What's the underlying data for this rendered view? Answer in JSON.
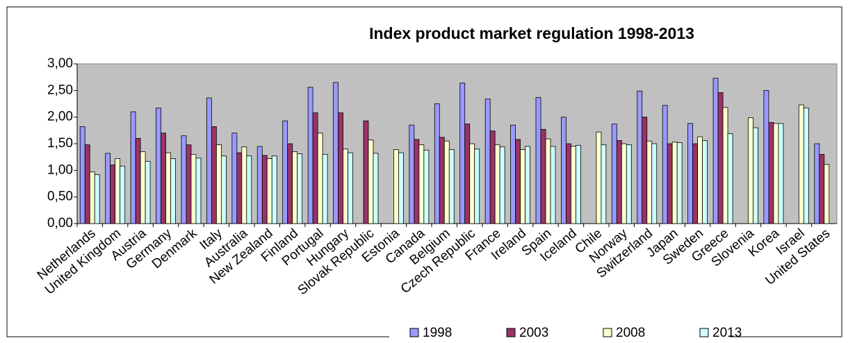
{
  "chart_data": {
    "type": "bar",
    "title": "Index product market regulation 1998-2013",
    "categories": [
      "Netherlands",
      "United Kingdom",
      "Austria",
      "Germany",
      "Denmark",
      "Italy",
      "Australia",
      "New Zealand",
      "Finland",
      "Portugal",
      "Hungary",
      "Slovak Republic",
      "Estonia",
      "Canada",
      "Belgium",
      "Czech Republic",
      "France",
      "Ireland",
      "Spain",
      "Iceland",
      "Chile",
      "Norway",
      "Switzerland",
      "Japan",
      "Sweden",
      "Greece",
      "Slovenia",
      "Korea",
      "Israel",
      "United States"
    ],
    "series": [
      {
        "name": "1998",
        "color": "#9999ff",
        "values": [
          1.82,
          1.32,
          2.1,
          2.17,
          1.65,
          2.36,
          1.7,
          1.45,
          1.93,
          2.56,
          2.65,
          null,
          null,
          1.85,
          2.25,
          2.64,
          2.34,
          1.85,
          2.37,
          2.0,
          null,
          1.87,
          2.49,
          2.22,
          1.88,
          2.73,
          null,
          2.5,
          null,
          1.5
        ]
      },
      {
        "name": "2003",
        "color": "#993366",
        "values": [
          1.48,
          1.1,
          1.6,
          1.7,
          1.48,
          1.82,
          1.33,
          1.28,
          1.5,
          2.08,
          2.08,
          1.93,
          null,
          1.58,
          1.62,
          1.87,
          1.74,
          1.58,
          1.77,
          1.5,
          null,
          1.56,
          2.0,
          1.5,
          1.5,
          2.46,
          null,
          1.9,
          null,
          1.3
        ]
      },
      {
        "name": "2008",
        "color": "#ffffcc",
        "values": [
          0.97,
          1.22,
          1.35,
          1.33,
          1.3,
          1.48,
          1.44,
          1.22,
          1.35,
          1.7,
          1.4,
          1.57,
          1.39,
          1.48,
          1.55,
          1.5,
          1.48,
          1.39,
          1.59,
          1.45,
          1.72,
          1.5,
          1.55,
          1.53,
          1.63,
          2.18,
          1.99,
          1.88,
          2.23,
          1.11
        ]
      },
      {
        "name": "2013",
        "color": "#ccffff",
        "values": [
          0.92,
          1.08,
          1.17,
          1.22,
          1.23,
          1.27,
          1.27,
          1.27,
          1.31,
          1.3,
          1.33,
          1.32,
          1.33,
          1.38,
          1.39,
          1.4,
          1.44,
          1.45,
          1.45,
          1.47,
          1.48,
          1.48,
          1.5,
          1.52,
          1.56,
          1.69,
          1.8,
          1.88,
          2.17,
          null
        ]
      }
    ],
    "ylim": [
      0,
      3
    ],
    "yticks": [
      {
        "value": 0,
        "label": "0,00"
      },
      {
        "value": 0.5,
        "label": "0,50"
      },
      {
        "value": 1,
        "label": "1,00"
      },
      {
        "value": 1.5,
        "label": "1,50"
      },
      {
        "value": 2,
        "label": "2,00"
      },
      {
        "value": 2.5,
        "label": "2,50"
      },
      {
        "value": 3,
        "label": "3,00"
      }
    ],
    "plot_background": "#c0c0c0",
    "legend": "bottom"
  }
}
